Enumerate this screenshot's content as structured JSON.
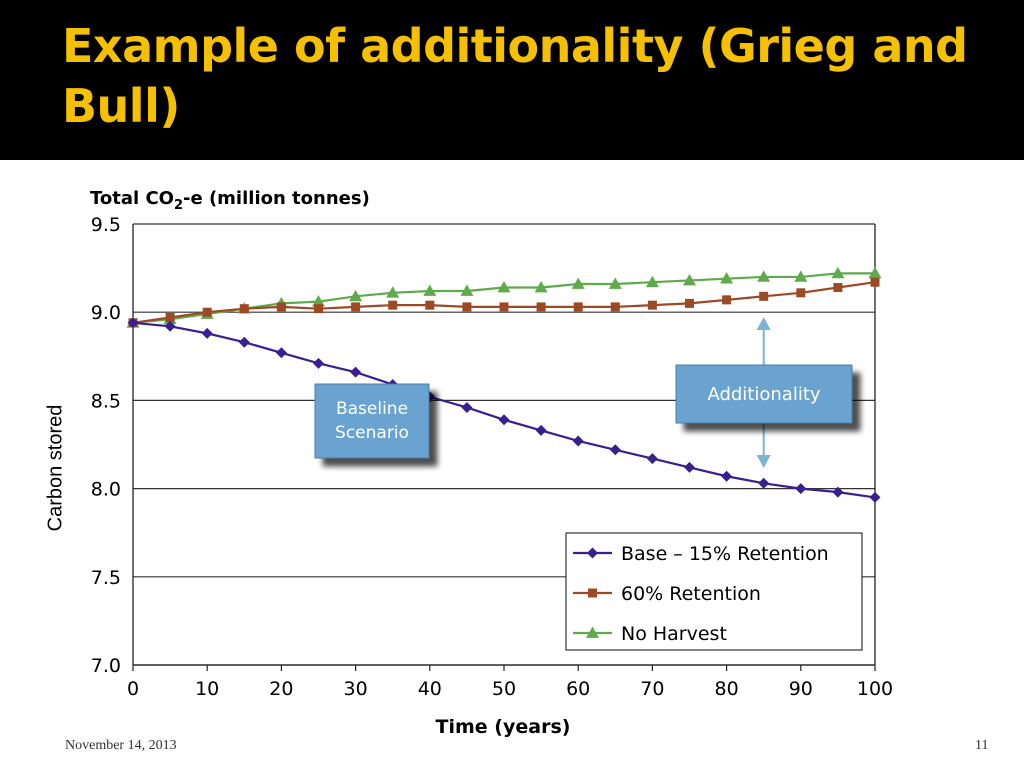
{
  "slide": {
    "title": "Example of additionality (Grieg and Bull)",
    "side_label": "Carbon stored",
    "footer_date": "November 14, 2013",
    "page_number": "11"
  },
  "colors": {
    "title": "#f5c000",
    "background": "#000000",
    "base": "#3a1f8f",
    "retention60": "#9c4a26",
    "noharvest": "#5faa4a",
    "callout_fill": "#6aa3cf",
    "arrow": "#7bb3d6"
  },
  "chart_data": {
    "type": "line",
    "title_main": "Total CO",
    "title_sub": "2",
    "title_rest": "-e (million tonnes)",
    "xlabel": "Time (years)",
    "ylabel": "",
    "xlim": [
      0,
      100
    ],
    "ylim": [
      7.0,
      9.5
    ],
    "x_ticks": [
      "0",
      "10",
      "20",
      "30",
      "40",
      "50",
      "60",
      "70",
      "80",
      "90",
      "100"
    ],
    "y_ticks": [
      "9.5",
      "9.0",
      "8.5",
      "8.0",
      "7.5",
      "7.0"
    ],
    "y_tick_values": [
      9.5,
      9.0,
      8.5,
      8.0,
      7.5,
      7.0
    ],
    "grid": "horizontal",
    "legend_position": "bottom-right",
    "x": [
      0,
      5,
      10,
      15,
      20,
      25,
      30,
      35,
      40,
      45,
      50,
      55,
      60,
      65,
      70,
      75,
      80,
      85,
      90,
      95,
      100
    ],
    "series": [
      {
        "name": "Base – 15% Retention",
        "color": "#3a1f8f",
        "marker": "diamond",
        "values": [
          8.94,
          8.92,
          8.88,
          8.83,
          8.77,
          8.71,
          8.66,
          8.59,
          8.52,
          8.46,
          8.39,
          8.33,
          8.27,
          8.22,
          8.17,
          8.12,
          8.07,
          8.03,
          8.0,
          7.98,
          7.95
        ]
      },
      {
        "name": "60% Retention",
        "color": "#9c4a26",
        "marker": "square",
        "values": [
          8.94,
          8.97,
          9.0,
          9.02,
          9.03,
          9.02,
          9.03,
          9.04,
          9.04,
          9.03,
          9.03,
          9.03,
          9.03,
          9.03,
          9.04,
          9.05,
          9.07,
          9.09,
          9.11,
          9.14,
          9.17
        ]
      },
      {
        "name": "No Harvest",
        "color": "#5faa4a",
        "marker": "triangle",
        "values": [
          8.94,
          8.96,
          8.99,
          9.02,
          9.05,
          9.06,
          9.09,
          9.11,
          9.12,
          9.12,
          9.14,
          9.14,
          9.16,
          9.16,
          9.17,
          9.18,
          9.19,
          9.2,
          9.2,
          9.22,
          9.22
        ]
      }
    ],
    "annotations": [
      {
        "label_lines": [
          "Baseline",
          "Scenario"
        ]
      },
      {
        "label_lines": [
          "Additionality"
        ]
      }
    ]
  }
}
